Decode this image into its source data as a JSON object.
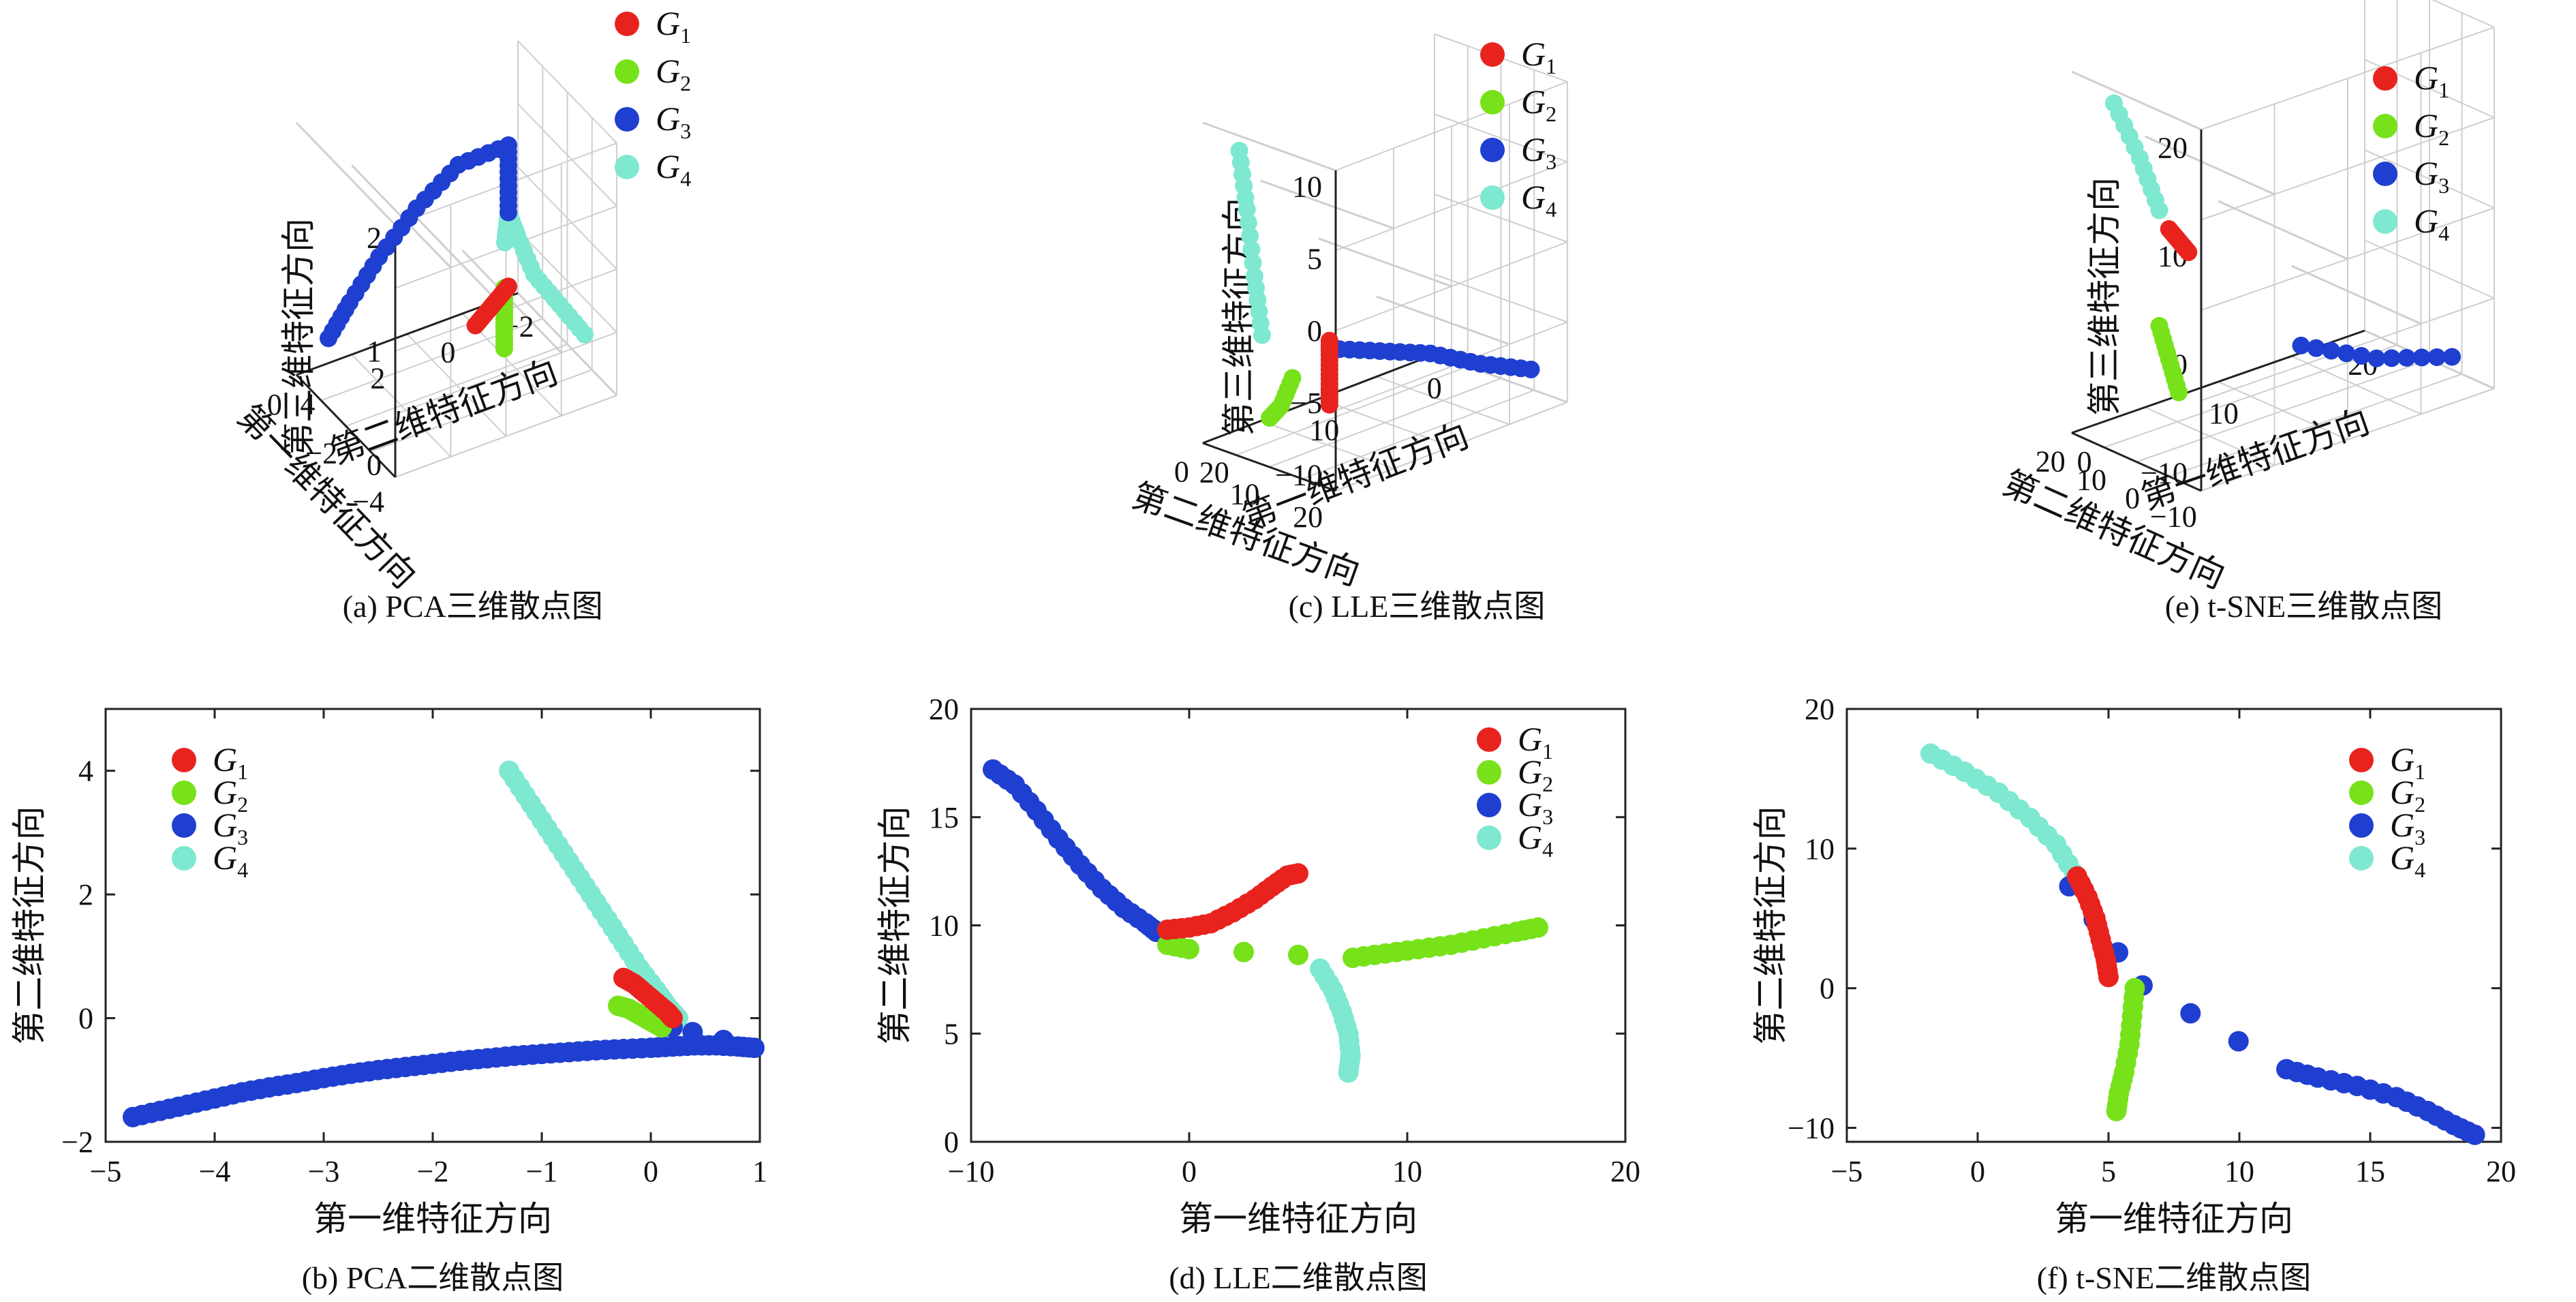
{
  "colors": {
    "G1": "#e8231e",
    "G2": "#77e21a",
    "G3": "#1f3fd0",
    "G4": "#7ee8d0"
  },
  "legend": [
    {
      "key": "G1",
      "label": "G",
      "sub": "1"
    },
    {
      "key": "G2",
      "label": "G",
      "sub": "2"
    },
    {
      "key": "G3",
      "label": "G",
      "sub": "3"
    },
    {
      "key": "G4",
      "label": "G",
      "sub": "4"
    }
  ],
  "chart_data": [
    {
      "id": "a",
      "type": "scatter",
      "dims": 3,
      "caption": "(a) PCA三维散点图",
      "xlabel": "第一维特征方向",
      "ylabel": "第二维特征方向",
      "zlabel": "第三维特征方向",
      "x_ticks": [
        "0",
        "−2",
        "−4"
      ],
      "y_ticks": [
        "4",
        "2",
        "0",
        "−2"
      ],
      "z_ticks": [
        "2",
        "1",
        "0"
      ],
      "series": [
        {
          "key": "G1",
          "points": [
            [
              0.0,
              1.0,
              0.4
            ],
            [
              0.0,
              0.8,
              0.3
            ],
            [
              0.0,
              0.6,
              0.2
            ],
            [
              0.0,
              0.4,
              0.1
            ],
            [
              0.0,
              0.2,
              0.0
            ]
          ]
        },
        {
          "key": "G2",
          "points": [
            [
              0.0,
              0.9,
              0.4
            ],
            [
              0.0,
              0.9,
              0.2
            ],
            [
              0.0,
              0.9,
              0.0
            ],
            [
              0.0,
              0.9,
              -0.2
            ],
            [
              0.0,
              0.9,
              -0.5
            ]
          ]
        },
        {
          "key": "G3",
          "points": [
            [
              0.0,
              1.0,
              1.5
            ],
            [
              0.0,
              1.0,
              2.0
            ],
            [
              0.0,
              1.0,
              2.5
            ],
            [
              -0.5,
              0.0,
              2.3
            ],
            [
              -1.0,
              -0.8,
              1.7
            ],
            [
              -1.5,
              -1.5,
              1.0
            ],
            [
              -2.0,
              -2.0,
              0.3
            ],
            [
              -2.5,
              -2.3,
              -0.3
            ]
          ]
        },
        {
          "key": "G4",
          "points": [
            [
              2.0,
              2.0,
              0.0
            ],
            [
              1.5,
              1.6,
              0.4
            ],
            [
              1.0,
              1.2,
              0.8
            ],
            [
              0.5,
              1.0,
              1.3
            ],
            [
              0.0,
              1.0,
              1.5
            ],
            [
              -0.2,
              1.0,
              1.0
            ]
          ]
        }
      ]
    },
    {
      "id": "c",
      "type": "scatter",
      "dims": 3,
      "caption": "(c) LLE三维散点图",
      "xlabel": "第二维特征方向",
      "ylabel": "第一维特征方向",
      "zlabel": "第三维特征方向",
      "x_ticks": [
        "0",
        "10",
        "20"
      ],
      "y_ticks": [
        "20",
        "10",
        "0"
      ],
      "z_ticks": [
        "10",
        "5",
        "0",
        "−5",
        "−10"
      ],
      "series": [
        {
          "key": "G1",
          "points": [
            [
              17,
              5,
              -3
            ],
            [
              17,
              5,
              -4.5
            ],
            [
              17,
              5,
              -6
            ],
            [
              17,
              5,
              -7
            ]
          ]
        },
        {
          "key": "G2",
          "points": [
            [
              11,
              4,
              -8.5
            ],
            [
              12.5,
              4,
              -7.5
            ],
            [
              14,
              4,
              -5.5
            ]
          ]
        },
        {
          "key": "G3",
          "points": [
            [
              17,
              5,
              -3.5
            ],
            [
              18,
              8,
              -4.5
            ],
            [
              19,
              11,
              -5.5
            ],
            [
              20,
              14,
              -7
            ],
            [
              21,
              17,
              -8.2
            ]
          ]
        },
        {
          "key": "G4",
          "points": [
            [
              7,
              4,
              7.5
            ],
            [
              8,
              4,
              4
            ],
            [
              9,
              4,
              0
            ],
            [
              10,
              4,
              -3.5
            ]
          ]
        }
      ]
    },
    {
      "id": "e",
      "type": "scatter",
      "dims": 3,
      "caption": "(e) t-SNE三维散点图",
      "xlabel": "第二维特征方向",
      "ylabel": "第一维特征方向",
      "zlabel": "第三维特征方向",
      "x_ticks": [
        "20",
        "10",
        "0",
        "−10"
      ],
      "y_ticks": [
        "0",
        "10",
        "20"
      ],
      "z_ticks": [
        "20",
        "10",
        "0",
        "−10"
      ],
      "series": [
        {
          "key": "G1",
          "points": [
            [
              5,
              5,
              7
            ],
            [
              8,
              5,
              6.5
            ],
            [
              11,
              5,
              6
            ]
          ]
        },
        {
          "key": "G2",
          "points": [
            [
              2,
              5,
              0
            ],
            [
              5,
              5,
              -2
            ],
            [
              8,
              5,
              -4
            ]
          ]
        },
        {
          "key": "G3",
          "points": [
            [
              12,
              12,
              -3
            ],
            [
              16,
              16,
              -5
            ],
            [
              20,
              20,
              -6
            ]
          ]
        },
        {
          "key": "G4",
          "points": [
            [
              -12,
              5,
              14
            ],
            [
              -4,
              5,
              11
            ],
            [
              2,
              5,
              8
            ]
          ]
        }
      ]
    },
    {
      "id": "b",
      "type": "scatter",
      "dims": 2,
      "caption": "(b) PCA二维散点图",
      "xlabel": "第一维特征方向",
      "ylabel": "第二维特征方向",
      "xlim": [
        -5,
        1
      ],
      "ylim": [
        -2,
        5
      ],
      "x_ticks": [
        -5,
        -4,
        -3,
        -2,
        -1,
        0,
        1
      ],
      "y_ticks": [
        -2,
        0,
        2,
        4
      ],
      "series": [
        {
          "key": "G1",
          "points": [
            [
              -0.25,
              0.65
            ],
            [
              -0.15,
              0.55
            ],
            [
              -0.05,
              0.4
            ],
            [
              0.05,
              0.25
            ],
            [
              0.15,
              0.1
            ],
            [
              0.2,
              0.0
            ]
          ]
        },
        {
          "key": "G2",
          "points": [
            [
              -0.3,
              0.2
            ],
            [
              -0.2,
              0.15
            ],
            [
              -0.1,
              0.05
            ],
            [
              0.0,
              -0.05
            ],
            [
              0.1,
              -0.15
            ]
          ]
        },
        {
          "key": "G3",
          "points": [
            [
              -4.75,
              -1.6
            ],
            [
              -4.5,
              -1.5
            ],
            [
              -4.25,
              -1.4
            ],
            [
              -4.0,
              -1.3
            ],
            [
              -3.75,
              -1.2
            ],
            [
              -3.5,
              -1.12
            ],
            [
              -3.25,
              -1.05
            ],
            [
              -3.0,
              -0.97
            ],
            [
              -2.75,
              -0.9
            ],
            [
              -2.5,
              -0.84
            ],
            [
              -2.25,
              -0.79
            ],
            [
              -2.0,
              -0.74
            ],
            [
              -1.75,
              -0.69
            ],
            [
              -1.5,
              -0.65
            ],
            [
              -1.25,
              -0.61
            ],
            [
              -1.0,
              -0.58
            ],
            [
              -0.75,
              -0.55
            ],
            [
              -0.5,
              -0.52
            ],
            [
              -0.25,
              -0.5
            ],
            [
              0.0,
              -0.48
            ],
            [
              0.2,
              -0.46
            ],
            [
              0.4,
              -0.44
            ],
            [
              0.6,
              -0.44
            ],
            [
              0.8,
              -0.46
            ],
            [
              0.95,
              -0.48
            ],
            [
              0.1,
              -0.1
            ],
            [
              0.2,
              -0.15
            ]
          ]
        },
        {
          "key": "G4",
          "points": [
            [
              -1.3,
              4.0
            ],
            [
              -1.15,
              3.6
            ],
            [
              -1.0,
              3.2
            ],
            [
              -0.85,
              2.8
            ],
            [
              -0.7,
              2.4
            ],
            [
              -0.55,
              2.0
            ],
            [
              -0.4,
              1.6
            ],
            [
              -0.25,
              1.2
            ],
            [
              -0.1,
              0.8
            ],
            [
              0.05,
              0.45
            ],
            [
              0.15,
              0.2
            ],
            [
              0.25,
              0.0
            ]
          ]
        }
      ]
    },
    {
      "id": "d",
      "type": "scatter",
      "dims": 2,
      "caption": "(d) LLE二维散点图",
      "xlabel": "第一维特征方向",
      "ylabel": "第二维特征方向",
      "xlim": [
        -10,
        20
      ],
      "ylim": [
        0,
        20
      ],
      "x_ticks": [
        -10,
        0,
        10,
        20
      ],
      "y_ticks": [
        0,
        5,
        10,
        15,
        20
      ],
      "series": [
        {
          "key": "G1",
          "points": [
            [
              -1.0,
              9.8
            ],
            [
              0.0,
              9.9
            ],
            [
              1.0,
              10.1
            ],
            [
              2.0,
              10.6
            ],
            [
              3.0,
              11.2
            ],
            [
              3.8,
              11.8
            ],
            [
              4.5,
              12.3
            ],
            [
              5.0,
              12.4
            ]
          ]
        },
        {
          "key": "G2",
          "points": [
            [
              -1.0,
              9.1
            ],
            [
              0.0,
              8.9
            ],
            [
              7.5,
              8.5
            ],
            [
              9.0,
              8.7
            ],
            [
              10.5,
              8.9
            ],
            [
              12.0,
              9.1
            ],
            [
              13.5,
              9.4
            ],
            [
              15.0,
              9.7
            ],
            [
              16.0,
              9.9
            ]
          ]
        },
        {
          "key": "G3",
          "points": [
            [
              -9.0,
              17.2
            ],
            [
              -8.0,
              16.5
            ],
            [
              -7.0,
              15.3
            ],
            [
              -6.0,
              14.0
            ],
            [
              -5.0,
              12.8
            ],
            [
              -4.0,
              11.7
            ],
            [
              -3.0,
              10.8
            ],
            [
              -2.0,
              10.1
            ],
            [
              -1.5,
              9.7
            ]
          ]
        },
        {
          "key": "G4",
          "points": [
            [
              6.0,
              8.0
            ],
            [
              6.6,
              7.0
            ],
            [
              7.0,
              6.0
            ],
            [
              7.3,
              5.0
            ],
            [
              7.4,
              4.0
            ],
            [
              7.3,
              3.2
            ]
          ]
        }
      ]
    },
    {
      "id": "f",
      "type": "scatter",
      "dims": 2,
      "caption": "(f) t-SNE二维散点图",
      "xlabel": "第一维特征方向",
      "ylabel": "第二维特征方向",
      "xlim": [
        -5,
        20
      ],
      "ylim": [
        -11,
        20
      ],
      "x_ticks": [
        -5,
        0,
        5,
        10,
        15,
        20
      ],
      "y_ticks": [
        -10,
        0,
        10,
        20
      ],
      "series": [
        {
          "key": "G1",
          "points": [
            [
              3.8,
              8.0
            ],
            [
              4.2,
              6.5
            ],
            [
              4.5,
              5.0
            ],
            [
              4.7,
              3.5
            ],
            [
              4.9,
              2.0
            ],
            [
              5.0,
              0.8
            ]
          ]
        },
        {
          "key": "G2",
          "points": [
            [
              6.0,
              0.0
            ],
            [
              5.9,
              -2.0
            ],
            [
              5.8,
              -4.0
            ],
            [
              5.6,
              -6.0
            ],
            [
              5.4,
              -7.5
            ],
            [
              5.3,
              -8.8
            ]
          ]
        },
        {
          "key": "G3",
          "points": [
            [
              3.5,
              7.3
            ],
            [
              6.3,
              0.2
            ],
            [
              11.8,
              -5.8
            ],
            [
              13.0,
              -6.4
            ],
            [
              14.5,
              -7.0
            ],
            [
              16.0,
              -7.8
            ],
            [
              17.2,
              -8.8
            ],
            [
              18.2,
              -9.8
            ],
            [
              19.0,
              -10.5
            ]
          ]
        },
        {
          "key": "G4",
          "points": [
            [
              -1.8,
              16.8
            ],
            [
              -0.5,
              15.5
            ],
            [
              0.8,
              14.0
            ],
            [
              2.0,
              12.2
            ],
            [
              3.0,
              10.3
            ],
            [
              3.7,
              8.2
            ],
            [
              4.0,
              7.3
            ]
          ]
        }
      ]
    }
  ]
}
